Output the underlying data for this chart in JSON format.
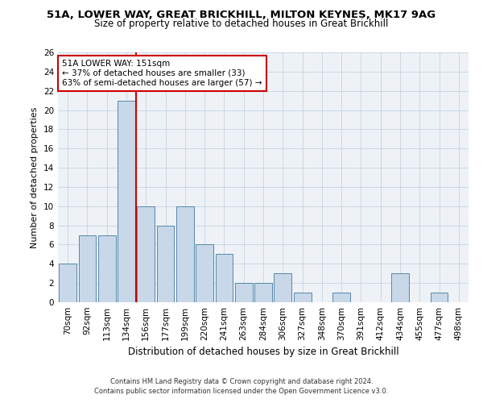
{
  "title1": "51A, LOWER WAY, GREAT BRICKHILL, MILTON KEYNES, MK17 9AG",
  "title2": "Size of property relative to detached houses in Great Brickhill",
  "xlabel": "Distribution of detached houses by size in Great Brickhill",
  "ylabel": "Number of detached properties",
  "categories": [
    "70sqm",
    "92sqm",
    "113sqm",
    "134sqm",
    "156sqm",
    "177sqm",
    "199sqm",
    "220sqm",
    "241sqm",
    "263sqm",
    "284sqm",
    "306sqm",
    "327sqm",
    "348sqm",
    "370sqm",
    "391sqm",
    "412sqm",
    "434sqm",
    "455sqm",
    "477sqm",
    "498sqm"
  ],
  "values": [
    4,
    7,
    7,
    21,
    10,
    8,
    10,
    6,
    5,
    2,
    2,
    3,
    1,
    0,
    1,
    0,
    0,
    3,
    0,
    1,
    0
  ],
  "bar_color": "#c8d8e8",
  "bar_edge_color": "#5588aa",
  "vline_x": 3.5,
  "vline_color": "#cc0000",
  "annotation_text": "51A LOWER WAY: 151sqm\n← 37% of detached houses are smaller (33)\n63% of semi-detached houses are larger (57) →",
  "annotation_box_color": "#ffffff",
  "annotation_box_edge": "#cc0000",
  "ylim": [
    0,
    26
  ],
  "yticks": [
    0,
    2,
    4,
    6,
    8,
    10,
    12,
    14,
    16,
    18,
    20,
    22,
    24,
    26
  ],
  "footer1": "Contains HM Land Registry data © Crown copyright and database right 2024.",
  "footer2": "Contains public sector information licensed under the Open Government Licence v3.0.",
  "bg_color": "#eef2f7",
  "title1_fontsize": 9.5,
  "title2_fontsize": 8.5,
  "xlabel_fontsize": 8.5,
  "ylabel_fontsize": 8.0,
  "tick_fontsize": 7.5,
  "annotation_fontsize": 7.5,
  "footer_fontsize": 6.0
}
